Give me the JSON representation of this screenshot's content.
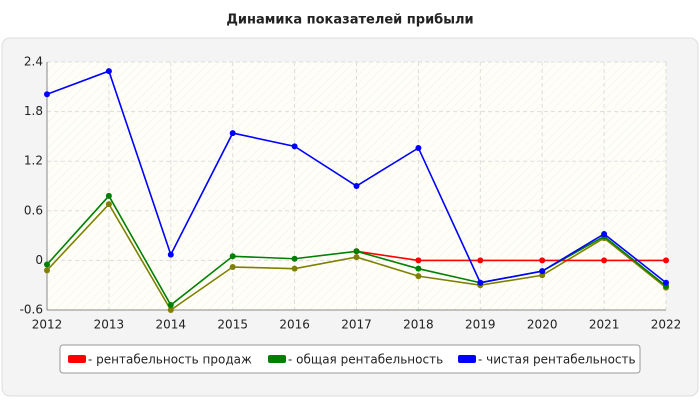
{
  "chart_data": {
    "type": "line",
    "title": "Динамика показателей прибыли",
    "x": [
      2012,
      2013,
      2014,
      2015,
      2016,
      2017,
      2018,
      2019,
      2020,
      2021,
      2022
    ],
    "xlim": [
      2012,
      2022
    ],
    "xticks": [
      2012,
      2013,
      2014,
      2015,
      2016,
      2017,
      2018,
      2019,
      2020,
      2021,
      2022
    ],
    "ylim": [
      -0.6,
      2.4
    ],
    "yticks": [
      -0.6,
      0,
      0.6,
      1.2,
      1.8,
      2.4
    ],
    "grid": true,
    "series": [
      {
        "color": "#808000",
        "values": [
          -0.12,
          0.68,
          -0.6,
          -0.08,
          -0.1,
          0.04,
          -0.19,
          -0.3,
          -0.18,
          0.27,
          -0.33
        ]
      },
      {
        "name": "- рентабельность продаж",
        "color": "#ff0000",
        "values": [
          null,
          null,
          null,
          null,
          null,
          0.11,
          0,
          0,
          0,
          0,
          0
        ]
      },
      {
        "name": "- общая рентабельность",
        "color": "#008000",
        "values": [
          -0.05,
          0.78,
          -0.54,
          0.05,
          0.02,
          0.11,
          -0.1,
          -0.27,
          -0.13,
          0.29,
          -0.31
        ]
      },
      {
        "name": "- чистая рентабельность",
        "color": "#0000ff",
        "values": [
          2.01,
          2.29,
          0.07,
          1.54,
          1.38,
          0.9,
          1.36,
          -0.27,
          -0.13,
          0.32,
          -0.27
        ]
      }
    ]
  }
}
